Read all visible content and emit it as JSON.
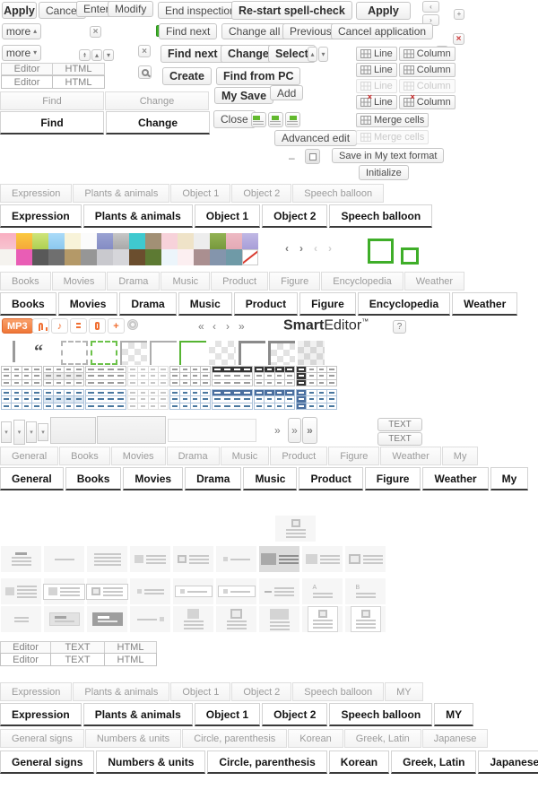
{
  "colors": {
    "accent_green": "#3fae29",
    "accent_orange": "#f07033",
    "accent_red": "#cc3b3b"
  },
  "buttons": {
    "apply": "Apply",
    "cancel": "Cancel",
    "enter": "Enter",
    "modify": "Modify",
    "more": "more",
    "end_inspection": "End inspection",
    "restart_spell": "Re-start spell-check",
    "find_next": "Find next",
    "change_all": "Change all",
    "previous": "Previous",
    "cancel_application": "Cancel application",
    "change": "Change",
    "select": "Select",
    "create": "Create",
    "find_from_pc": "Find from PC",
    "my_save": "My Save",
    "add": "Add",
    "close": "Close",
    "advanced_edit": "Advanced edit",
    "save_my_text": "Save in My text format",
    "initialize": "Initialize",
    "editor": "Editor",
    "html": "HTML",
    "text": "TEXT",
    "line": "Line",
    "column": "Column",
    "merge_cells": "Merge cells",
    "mp3": "MP3",
    "help": "?"
  },
  "icons": {
    "close": "×",
    "plus": "+",
    "minus": "–",
    "chev_left": "‹",
    "chev_right": "›",
    "dbl_left": "«",
    "dbl_right": "»",
    "up_sm": "▴",
    "down_sm": "▾",
    "note": "♪",
    "quote": "“"
  },
  "logo": {
    "bold": "Smart",
    "rest": "Editor",
    "tm": "™"
  },
  "tabs": {
    "find_change": [
      "Find",
      "Change"
    ],
    "sticker": [
      "Expression",
      "Plants & animals",
      "Object 1",
      "Object 2",
      "Speech balloon"
    ],
    "sticker_my": [
      "Expression",
      "Plants & animals",
      "Object 1",
      "Object 2",
      "Speech balloon",
      "MY"
    ],
    "media": [
      "Books",
      "Movies",
      "Drama",
      "Music",
      "Product",
      "Figure",
      "Encyclopedia",
      "Weather"
    ],
    "category": [
      "General",
      "Books",
      "Movies",
      "Drama",
      "Music",
      "Product",
      "Figure",
      "Weather",
      "My"
    ],
    "signs": [
      "General signs",
      "Numbers & units",
      "Circle, parenthesis",
      "Korean",
      "Greek, Latin",
      "Japanese"
    ]
  },
  "table_ctrl": {
    "rows": [
      {
        "state": "",
        "ico": ""
      },
      {
        "state": "",
        "ico": ""
      },
      {
        "state": "dis",
        "ico": ""
      },
      {
        "state": "",
        "ico": "red"
      }
    ]
  },
  "palette": {
    "row1": [
      "linear-gradient(180deg,#f9aec1,#f7c4d0)",
      "linear-gradient(180deg,#fbc93f,#f5a93a)",
      "linear-gradient(180deg,#cfe47a,#aed052)",
      "linear-gradient(180deg,#aadbf8,#8cc8ef)",
      "#f8f3d9",
      "#fbfbfb",
      "linear-gradient(180deg,#9aa2d2,#848cc4)",
      "linear-gradient(180deg,#c6c6c6,#a9a9a9)",
      "#3fc9cf",
      "#a29075",
      "#f7d2da",
      "#efe3c8",
      "#ededed",
      "linear-gradient(180deg,#93b254,#77993d)",
      "linear-gradient(180deg,#edb9c3,#e4aab6)",
      "linear-gradient(180deg,#c0b8e4,#a89ed8)"
    ],
    "row2": [
      "#f5f3ef",
      "#e95db5",
      "#595959",
      "#6f6f6f",
      "#b49968",
      "#969696",
      "#c9c9ce",
      "#d6d6da",
      "#6b4e2e",
      "#5d7a33",
      "#ecf5fb",
      "#fceff1",
      "#aa8f90",
      "#8495ac",
      "#6f9aa7",
      "none"
    ]
  },
  "border_samples": [
    {
      "bg": "plain",
      "style": "bs-dash-gray"
    },
    {
      "bg": "plain",
      "style": "bs-dash-green"
    },
    {
      "bg": "checker",
      "style": "bs-corner-gray"
    },
    {
      "bg": "plain",
      "style": "bs-corner-gray"
    },
    {
      "bg": "plain",
      "style": "bs-corner-green"
    },
    {
      "bg": "checker",
      "style": ""
    },
    {
      "bg": "plain",
      "style": "bs-corner-thick"
    },
    {
      "bg": "checker",
      "style": "bs-corner-thick"
    },
    {
      "bg": "checker",
      "style": "bs-shade"
    }
  ],
  "table_styles": {
    "styles": [
      {
        "name": "grid",
        "cells": true
      },
      {
        "name": "grid-shaded",
        "cells": true,
        "shaded": true
      },
      {
        "name": "h-lines",
        "cells": false
      },
      {
        "name": "light-grid",
        "cells": true,
        "light": true
      },
      {
        "name": "grid-2",
        "cells": true
      },
      {
        "name": "dark-header",
        "cells": false,
        "header": "band"
      },
      {
        "name": "dark-header-cells",
        "cells": true,
        "header": "cells"
      },
      {
        "name": "dark-first-col",
        "cells": true,
        "firstcol": true
      }
    ]
  },
  "thumbs": {
    "single": [
      {
        "name": "img-top-centered",
        "img": "sm",
        "pos": "top",
        "border": true,
        "lines": 3,
        "center": true
      }
    ],
    "rowA": [
      {
        "name": "text-centered",
        "lines": 4,
        "center": true,
        "lead": true
      },
      {
        "name": "single-line",
        "lines": 1
      },
      {
        "name": "text-full",
        "lines": 4,
        "wide": true
      },
      {
        "name": "img-sm-left",
        "img": "sm",
        "lines": 3
      },
      {
        "name": "img-framed-left",
        "img": "sm",
        "border": true,
        "lines": 3
      },
      {
        "name": "bullet-line",
        "img": "dot",
        "lines": 1
      },
      {
        "name": "img-lg-left-selected",
        "img": "lg",
        "lines": 3,
        "sel": true
      },
      {
        "name": "img-md-left",
        "img": "md",
        "lines": 3
      },
      {
        "name": "img-md-framed-left",
        "img": "md",
        "border": true,
        "lines": 3
      }
    ],
    "rowB": [
      {
        "name": "img-sm-left-2",
        "img": "sm",
        "lines": 4
      },
      {
        "name": "boxed-img-text",
        "img": "sm",
        "lines": 3,
        "boxed": true
      },
      {
        "name": "boxed-img-framed-text",
        "img": "sm",
        "border": true,
        "lines": 3,
        "boxed": true
      },
      {
        "name": "bullet-2lines",
        "img": "dot",
        "lines": 2
      },
      {
        "name": "boxed-bullet-line",
        "img": "dot",
        "lines": 1,
        "boxed": true
      },
      {
        "name": "boxed-bullet-line-2",
        "img": "dot",
        "lines": 1,
        "boxed": true
      },
      {
        "name": "dash-text",
        "img": "dash",
        "lines": 3
      },
      {
        "name": "label-a-text",
        "label": "A",
        "lines": 2,
        "pos": "top",
        "start": true
      },
      {
        "name": "label-b-text",
        "label": "B",
        "lines": 2,
        "pos": "top",
        "start": true
      }
    ],
    "rowC": [
      {
        "name": "two-lines",
        "lines": 2,
        "short": true
      },
      {
        "name": "boxed-highlight-text",
        "lines": 2,
        "boxed": true,
        "hl": true,
        "lead": true
      },
      {
        "name": "boxed-dark-text",
        "lines": 2,
        "boxed": true,
        "dark": true,
        "lead": true
      },
      {
        "name": "line-bullet-right",
        "img": "dot",
        "pos": "right",
        "lines": 1
      },
      {
        "name": "img-top-text",
        "img": "md",
        "pos": "top",
        "lines": 3
      },
      {
        "name": "img-framed-top-text",
        "img": "md",
        "pos": "top",
        "border": true,
        "lines": 3
      },
      {
        "name": "img-wide-top-text",
        "img": "wide",
        "pos": "top",
        "lines": 3
      },
      {
        "name": "card-img-text",
        "img": "sm",
        "pos": "top",
        "border": true,
        "lines": 3,
        "card": true
      },
      {
        "name": "card-img-text-2",
        "img": "sm",
        "pos": "top",
        "border": true,
        "lines": 3,
        "card": true
      }
    ]
  }
}
